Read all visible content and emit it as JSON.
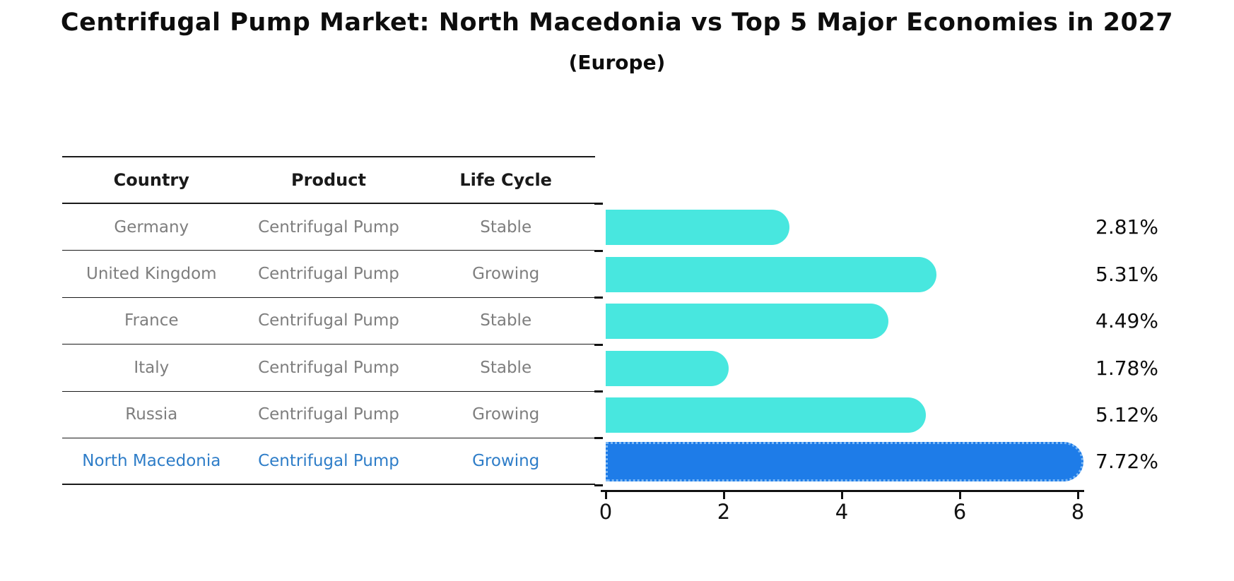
{
  "title": "Centrifugal Pump Market: North Macedonia vs Top 5 Major Economies in 2027",
  "subtitle": "(Europe)",
  "table": {
    "headers": [
      "Country",
      "Product",
      "Life Cycle"
    ],
    "rows": [
      {
        "country": "Germany",
        "product": "Centrifugal Pump",
        "life_cycle": "Stable"
      },
      {
        "country": "United Kingdom",
        "product": "Centrifugal Pump",
        "life_cycle": "Growing"
      },
      {
        "country": "France",
        "product": "Centrifugal Pump",
        "life_cycle": "Stable"
      },
      {
        "country": "Italy",
        "product": "Centrifugal Pump",
        "life_cycle": "Stable"
      },
      {
        "country": "Russia",
        "product": "Centrifugal Pump",
        "life_cycle": "Growing"
      },
      {
        "country": "North Macedonia",
        "product": "Centrifugal Pump",
        "life_cycle": "Growing"
      }
    ]
  },
  "chart_data": {
    "type": "bar",
    "orientation": "horizontal",
    "title": "Centrifugal Pump Market: North Macedonia vs Top 5 Major Economies in 2027",
    "subtitle": "(Europe)",
    "categories": [
      "Germany",
      "United Kingdom",
      "France",
      "Italy",
      "Russia",
      "North Macedonia"
    ],
    "values": [
      2.81,
      5.31,
      4.49,
      1.78,
      5.12,
      7.72
    ],
    "value_labels": [
      "2.81%",
      "5.31%",
      "4.49%",
      "1.78%",
      "5.12%",
      "7.72%"
    ],
    "xlim": [
      0,
      8
    ],
    "xticks": [
      "0",
      "2",
      "4",
      "6",
      "8"
    ],
    "grid": false,
    "legend": false,
    "highlight_index": 5,
    "colors": {
      "bar": "#48e7df",
      "highlight_bar": "#1e7ce8",
      "highlight_text": "#2e7dc8",
      "table_text": "#7e7e7e",
      "axis_text": "#111111"
    }
  }
}
